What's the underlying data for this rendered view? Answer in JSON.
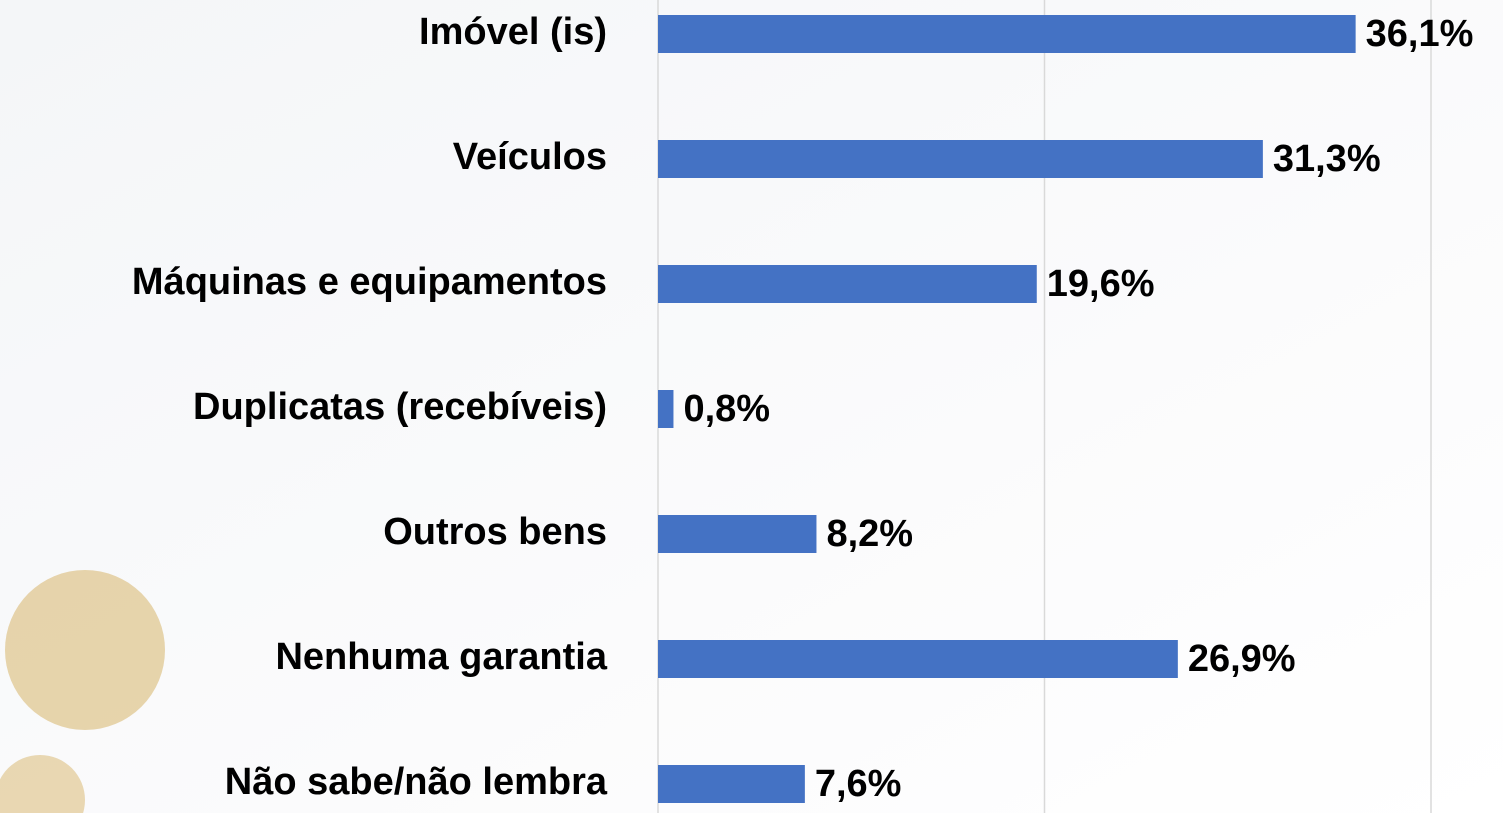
{
  "chart_data": {
    "type": "barh",
    "categories": [
      "Imóvel (is)",
      "Veículos",
      "Máquinas e equipamentos",
      "Duplicatas (recebíveis)",
      "Outros bens",
      "Nenhuma garantia",
      "Não sabe/não lembra"
    ],
    "values": [
      36.1,
      31.3,
      19.6,
      0.8,
      8.2,
      26.9,
      7.6
    ],
    "value_labels": [
      "36,1%",
      "31,3%",
      "19,6%",
      "0,8%",
      "8,2%",
      "26,9%",
      "7,6%"
    ],
    "color": "#4472c4",
    "xlim": [
      0,
      40
    ],
    "xticks": [
      0,
      20,
      40
    ],
    "grid": true
  }
}
